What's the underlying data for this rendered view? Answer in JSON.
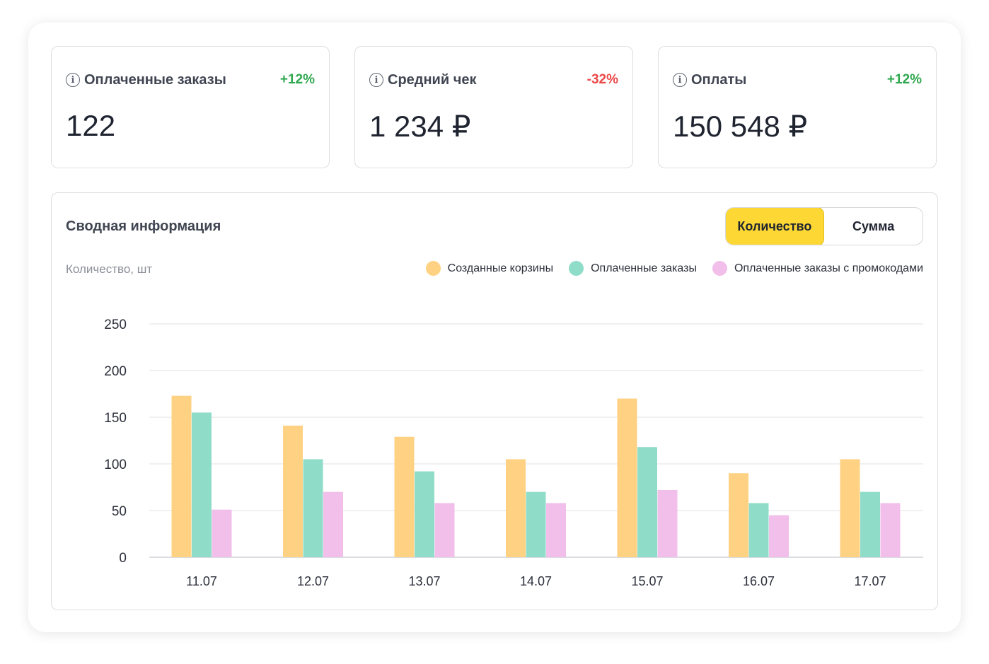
{
  "cards": [
    {
      "title": "Оплаченные заказы",
      "delta": "+12%",
      "trend": "up",
      "value": "122"
    },
    {
      "title": "Средний чек",
      "delta": "-32%",
      "trend": "down",
      "value": "1 234 ₽"
    },
    {
      "title": "Оплаты",
      "delta": "+12%",
      "trend": "up",
      "value": "150 548 ₽"
    }
  ],
  "summary": {
    "title": "Сводная информация",
    "toggle": {
      "options": [
        "Количество",
        "Сумма"
      ],
      "active": "Количество"
    },
    "unit_label": "Количество, шт"
  },
  "colors": {
    "accent": "#fdd835",
    "positive": "#2fa84f",
    "negative": "#ec4747",
    "series": [
      "#ffd283",
      "#8fdcc9",
      "#f1bfe9"
    ]
  },
  "chart_data": {
    "type": "bar",
    "categories": [
      "11.07",
      "12.07",
      "13.07",
      "14.07",
      "15.07",
      "16.07",
      "17.07"
    ],
    "series": [
      {
        "name": "Созданные корзины",
        "values": [
          173,
          141,
          129,
          105,
          170,
          90,
          105
        ]
      },
      {
        "name": "Оплаченные заказы",
        "values": [
          155,
          105,
          92,
          70,
          118,
          58,
          70
        ]
      },
      {
        "name": "Оплаченные заказы с промокодами",
        "values": [
          51,
          70,
          58,
          58,
          72,
          45,
          58
        ]
      }
    ],
    "yticks": [
      0,
      50,
      100,
      150,
      200,
      250
    ],
    "ylim": [
      0,
      250
    ],
    "ylabel": "Количество, шт",
    "grid": true,
    "legend": "top-right"
  }
}
